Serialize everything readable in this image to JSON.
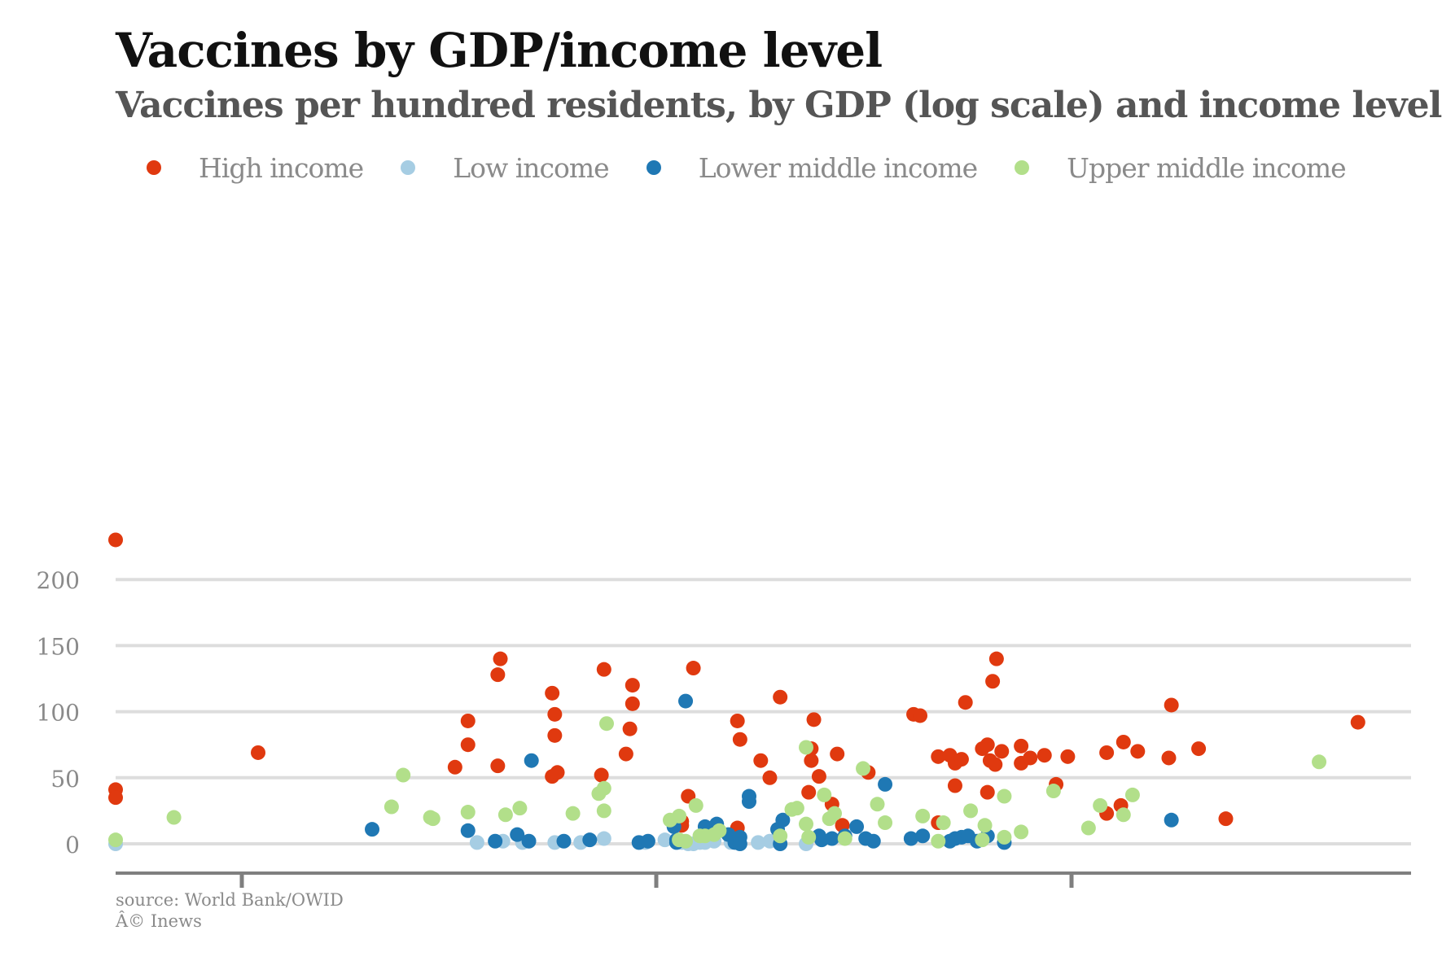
{
  "chart_data": {
    "type": "scatter",
    "title": "Vaccines by GDP/income level",
    "subtitle": "Vaccines per hundred residents, by GDP (log scale) and income level",
    "xlabel": "",
    "ylabel": "",
    "x_axis": {
      "ticks_labeled": false,
      "note": "unlabeled GDP axis; x values are relative positions 0-100 along the axis"
    },
    "xlim": [
      0,
      100
    ],
    "ylim": [
      -10,
      230
    ],
    "yticks": [
      0,
      50,
      100,
      150,
      200
    ],
    "ytick_labels": [
      "0",
      "50",
      "100",
      "150",
      "200"
    ],
    "grid": "horizontal",
    "legend_placement": "top",
    "series": [
      {
        "name": "High income",
        "color": "#e0390f",
        "points": [
          [
            0,
            230
          ],
          [
            0,
            41
          ],
          [
            0,
            35
          ],
          [
            11,
            69
          ],
          [
            26.2,
            58
          ],
          [
            27.2,
            93
          ],
          [
            27.2,
            75
          ],
          [
            29.5,
            128
          ],
          [
            29.7,
            140
          ],
          [
            29.5,
            59
          ],
          [
            33.7,
            114
          ],
          [
            33.9,
            98
          ],
          [
            33.9,
            82
          ],
          [
            33.7,
            51
          ],
          [
            34.1,
            54
          ],
          [
            37.5,
            52
          ],
          [
            37.7,
            132
          ],
          [
            39.4,
            68
          ],
          [
            39.7,
            87
          ],
          [
            39.9,
            120
          ],
          [
            39.9,
            106
          ],
          [
            43.7,
            17
          ],
          [
            43.7,
            14
          ],
          [
            44.2,
            36
          ],
          [
            44.6,
            133
          ],
          [
            48,
            12
          ],
          [
            48,
            93
          ],
          [
            48.2,
            79
          ],
          [
            49.8,
            63
          ],
          [
            50.5,
            50
          ],
          [
            51.3,
            111
          ],
          [
            53.5,
            39
          ],
          [
            53.7,
            72
          ],
          [
            53.7,
            63
          ],
          [
            53.9,
            94
          ],
          [
            54.3,
            51
          ],
          [
            55.3,
            30
          ],
          [
            55.7,
            68
          ],
          [
            56.1,
            14
          ],
          [
            58.1,
            54
          ],
          [
            61.6,
            98
          ],
          [
            62.1,
            97
          ],
          [
            63.5,
            66
          ],
          [
            63.5,
            16
          ],
          [
            64.4,
            67
          ],
          [
            64.8,
            61
          ],
          [
            64.8,
            44
          ],
          [
            65.3,
            64
          ],
          [
            65.6,
            107
          ],
          [
            66.9,
            72
          ],
          [
            67.3,
            75
          ],
          [
            67.3,
            39
          ],
          [
            67.5,
            63
          ],
          [
            67.7,
            123
          ],
          [
            67.9,
            60
          ],
          [
            68,
            140
          ],
          [
            68.4,
            70
          ],
          [
            69.9,
            74
          ],
          [
            69.9,
            61
          ],
          [
            70.6,
            65
          ],
          [
            71.7,
            67
          ],
          [
            73.5,
            66
          ],
          [
            72.6,
            45
          ],
          [
            76.5,
            69
          ],
          [
            76.5,
            23
          ],
          [
            77.6,
            29
          ],
          [
            77.8,
            77
          ],
          [
            78.9,
            70
          ],
          [
            81.3,
            65
          ],
          [
            81.5,
            105
          ],
          [
            83.6,
            72
          ],
          [
            85.7,
            19
          ],
          [
            95.9,
            92
          ]
        ]
      },
      {
        "name": "Low income",
        "color": "#a6cde3",
        "points": [
          [
            0,
            0
          ],
          [
            27.9,
            1
          ],
          [
            29.9,
            2
          ],
          [
            31.4,
            1
          ],
          [
            33.9,
            1
          ],
          [
            35.9,
            1
          ],
          [
            37.7,
            4
          ],
          [
            40.4,
            1
          ],
          [
            40.9,
            1
          ],
          [
            42.4,
            3
          ],
          [
            43.7,
            1
          ],
          [
            44.2,
            0
          ],
          [
            44.6,
            0
          ],
          [
            45.1,
            1
          ],
          [
            45.5,
            1
          ],
          [
            46.2,
            2
          ],
          [
            47.5,
            1
          ],
          [
            49.6,
            1
          ],
          [
            50.5,
            2
          ],
          [
            53.3,
            0
          ]
        ]
      },
      {
        "name": "Lower middle income",
        "color": "#1f78b4",
        "points": [
          [
            19.8,
            11
          ],
          [
            27.2,
            10
          ],
          [
            29.3,
            2
          ],
          [
            31,
            7
          ],
          [
            31.9,
            2
          ],
          [
            32.1,
            63
          ],
          [
            34.6,
            2
          ],
          [
            36.6,
            3
          ],
          [
            40.4,
            1
          ],
          [
            41.1,
            2
          ],
          [
            43.1,
            13
          ],
          [
            43.3,
            1
          ],
          [
            43.3,
            3
          ],
          [
            44.0,
            108
          ],
          [
            45.5,
            13
          ],
          [
            46.4,
            15
          ],
          [
            47.3,
            7
          ],
          [
            47.8,
            1
          ],
          [
            48.2,
            5
          ],
          [
            48.2,
            0
          ],
          [
            48.9,
            32
          ],
          [
            48.9,
            36
          ],
          [
            51.1,
            11
          ],
          [
            51.3,
            0
          ],
          [
            51.5,
            18
          ],
          [
            54.3,
            6
          ],
          [
            54.5,
            3
          ],
          [
            55.3,
            4
          ],
          [
            56.3,
            6
          ],
          [
            57.2,
            13
          ],
          [
            57.9,
            4
          ],
          [
            58.5,
            2
          ],
          [
            59.4,
            45
          ],
          [
            61.4,
            4
          ],
          [
            62.3,
            6
          ],
          [
            64.4,
            2
          ],
          [
            64.8,
            4
          ],
          [
            65.3,
            5
          ],
          [
            65.8,
            6
          ],
          [
            66.5,
            2
          ],
          [
            67.3,
            6
          ],
          [
            68.6,
            1
          ],
          [
            81.5,
            18
          ]
        ]
      },
      {
        "name": "Upper middle income",
        "color": "#b2df8a",
        "points": [
          [
            0,
            3
          ],
          [
            4.5,
            20
          ],
          [
            21.3,
            28
          ],
          [
            22.2,
            52
          ],
          [
            24.3,
            20
          ],
          [
            24.5,
            19
          ],
          [
            27.2,
            24
          ],
          [
            30.1,
            22
          ],
          [
            31.2,
            27
          ],
          [
            35.3,
            23
          ],
          [
            37.3,
            38
          ],
          [
            37.7,
            25
          ],
          [
            37.7,
            42
          ],
          [
            37.9,
            91
          ],
          [
            42.8,
            18
          ],
          [
            43.5,
            21
          ],
          [
            43.5,
            3
          ],
          [
            44.0,
            2
          ],
          [
            44.8,
            29
          ],
          [
            45.1,
            6
          ],
          [
            45.5,
            6
          ],
          [
            46.2,
            7
          ],
          [
            46.6,
            10
          ],
          [
            51.3,
            6
          ],
          [
            52.2,
            26
          ],
          [
            52.6,
            27
          ],
          [
            53.3,
            73
          ],
          [
            53.3,
            15
          ],
          [
            53.5,
            5
          ],
          [
            54.7,
            37
          ],
          [
            55.1,
            19
          ],
          [
            55.5,
            23
          ],
          [
            56.3,
            4
          ],
          [
            57.7,
            57
          ],
          [
            58.8,
            30
          ],
          [
            59.4,
            16
          ],
          [
            62.3,
            21
          ],
          [
            63.5,
            2
          ],
          [
            63.9,
            16
          ],
          [
            66.0,
            25
          ],
          [
            66.9,
            3
          ],
          [
            67.1,
            14
          ],
          [
            68.6,
            36
          ],
          [
            68.6,
            5
          ],
          [
            69.9,
            9
          ],
          [
            72.4,
            40
          ],
          [
            75.1,
            12
          ],
          [
            76.0,
            29
          ],
          [
            77.8,
            22
          ],
          [
            78.5,
            37
          ],
          [
            92.9,
            62
          ]
        ]
      }
    ]
  },
  "footer": {
    "source": "source: World Bank/OWID",
    "credit": "Â© Inews"
  },
  "colors": {
    "gridline": "#dddddd",
    "axis": "#7f7f7f",
    "tick_label": "#8a8a8a"
  }
}
